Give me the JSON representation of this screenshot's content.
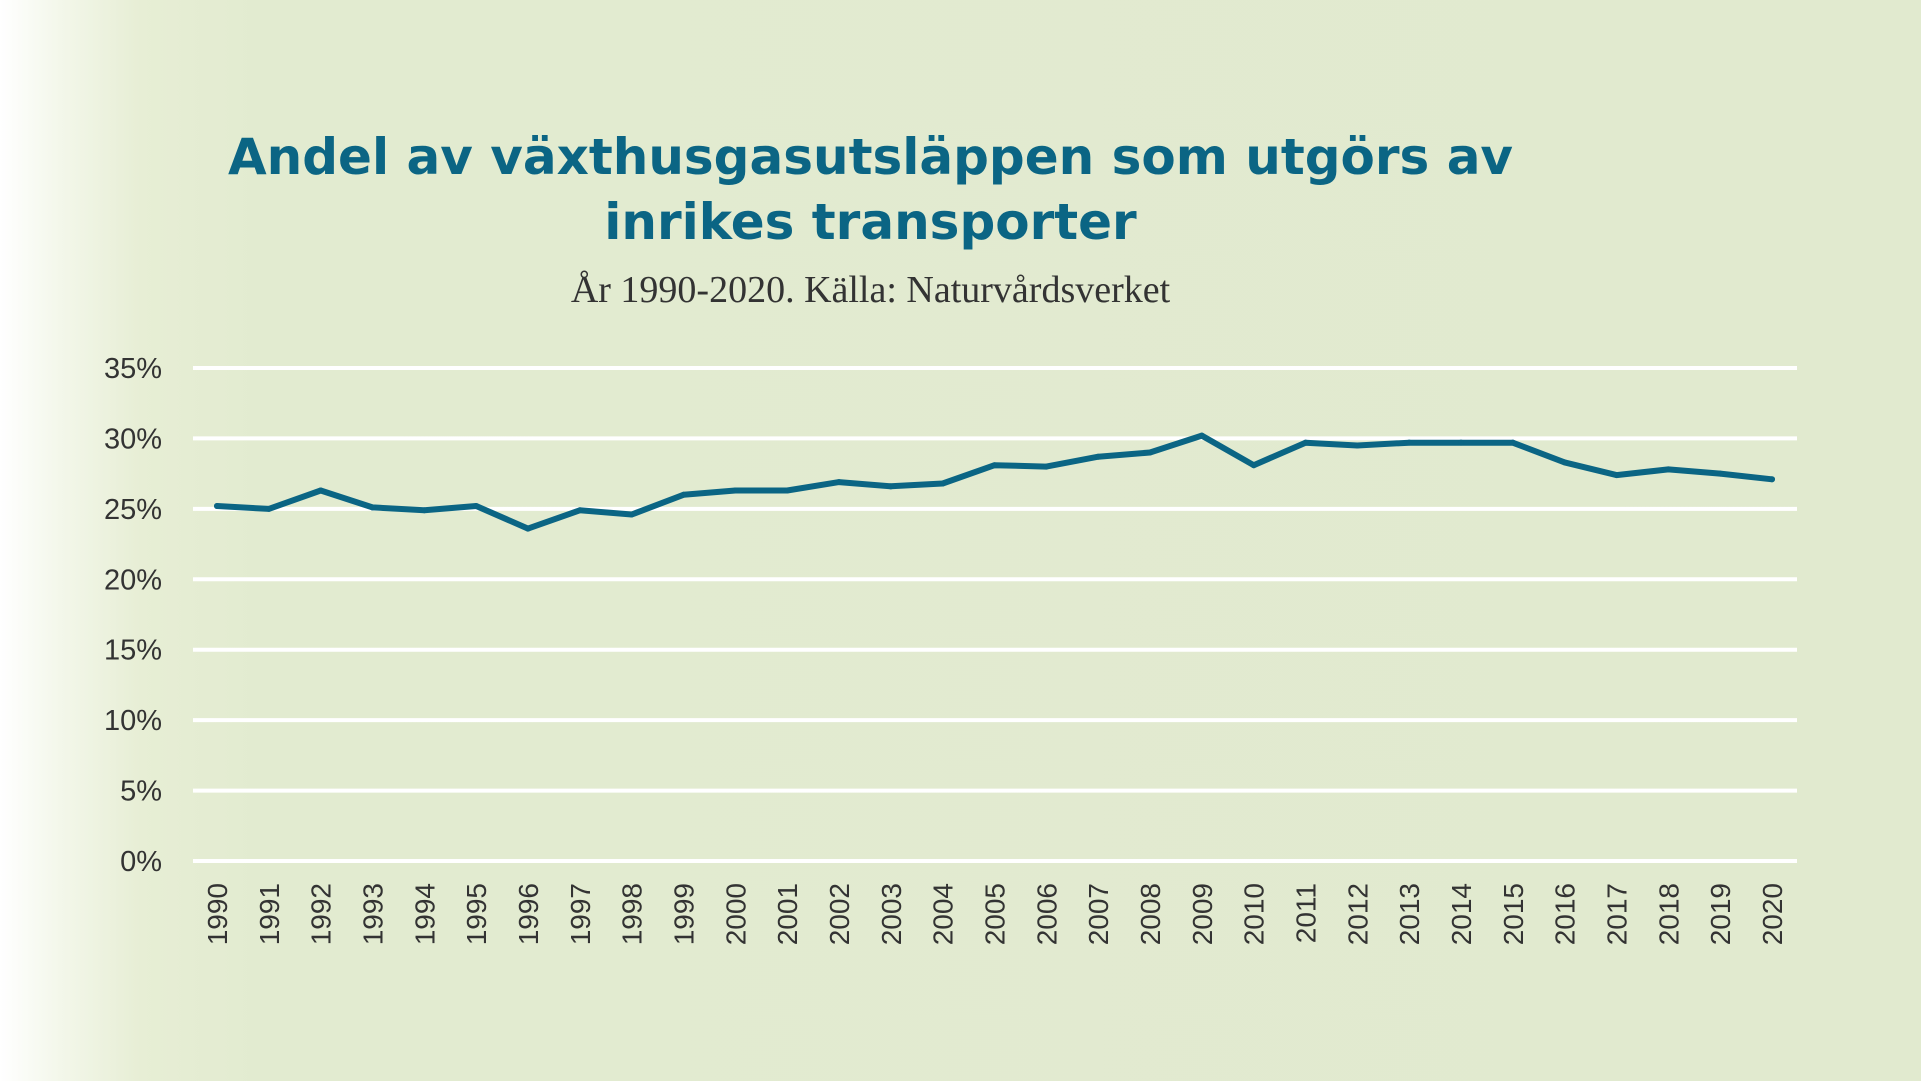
{
  "title_line1": "Andel av växthusgasutsläppen som utgörs av",
  "title_line2": "inrikes transporter",
  "subtitle": "År 1990-2020. Källa: Naturvårdsverket",
  "colors": {
    "line": "#0b6584",
    "title": "#0b6584",
    "gridline": "#ffffff",
    "background": "#e1eacf",
    "text": "#333333"
  },
  "chart_data": {
    "type": "line",
    "title": "Andel av växthusgasutsläppen som utgörs av inrikes transporter",
    "subtitle": "År 1990-2020. Källa: Naturvårdsverket",
    "xlabel": "",
    "ylabel": "",
    "ylim": [
      0,
      35
    ],
    "yticks": [
      0,
      5,
      10,
      15,
      20,
      25,
      30,
      35
    ],
    "ytick_labels": [
      "0%",
      "5%",
      "10%",
      "15%",
      "20%",
      "25%",
      "30%",
      "35%"
    ],
    "grid": true,
    "legend": "none",
    "x": [
      "1990",
      "1991",
      "1992",
      "1993",
      "1994",
      "1995",
      "1996",
      "1997",
      "1998",
      "1999",
      "2000",
      "2001",
      "2002",
      "2003",
      "2004",
      "2005",
      "2006",
      "2007",
      "2008",
      "2009",
      "2010",
      "2011",
      "2012",
      "2013",
      "2014",
      "2015",
      "2016",
      "2017",
      "2018",
      "2019",
      "2020"
    ],
    "values": [
      25.2,
      25.0,
      26.3,
      25.1,
      24.9,
      25.2,
      23.6,
      24.9,
      24.6,
      26.0,
      26.3,
      26.3,
      26.9,
      26.6,
      26.8,
      28.1,
      28.0,
      28.7,
      29.0,
      30.2,
      28.1,
      29.7,
      29.5,
      29.7,
      29.7,
      29.7,
      28.3,
      27.4,
      27.8,
      27.5,
      27.1
    ]
  }
}
